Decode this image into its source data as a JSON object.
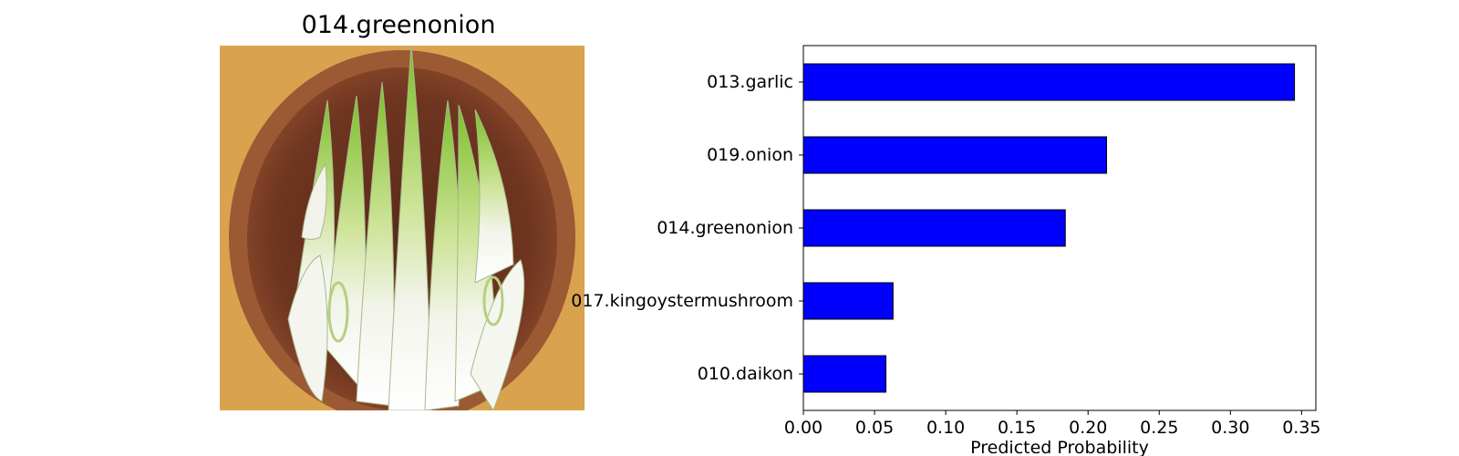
{
  "image_title": "014.greenonion",
  "colors": {
    "bar_fill": "#0000ff",
    "bar_edge": "#000000",
    "axis": "#000000"
  },
  "chart_data": {
    "type": "bar",
    "orientation": "horizontal",
    "categories": [
      "013.garlic",
      "019.onion",
      "014.greenonion",
      "017.kingoystermushroom",
      "010.daikon"
    ],
    "values": [
      0.345,
      0.213,
      0.184,
      0.063,
      0.058
    ],
    "xlabel": "Predicted Probability",
    "ylabel": "",
    "xlim": [
      0,
      0.36
    ],
    "xticks": [
      0.0,
      0.05,
      0.1,
      0.15,
      0.2,
      0.25,
      0.3,
      0.35
    ],
    "xtick_labels": [
      "0.00",
      "0.05",
      "0.10",
      "0.15",
      "0.20",
      "0.25",
      "0.30",
      "0.35"
    ],
    "grid": false
  }
}
